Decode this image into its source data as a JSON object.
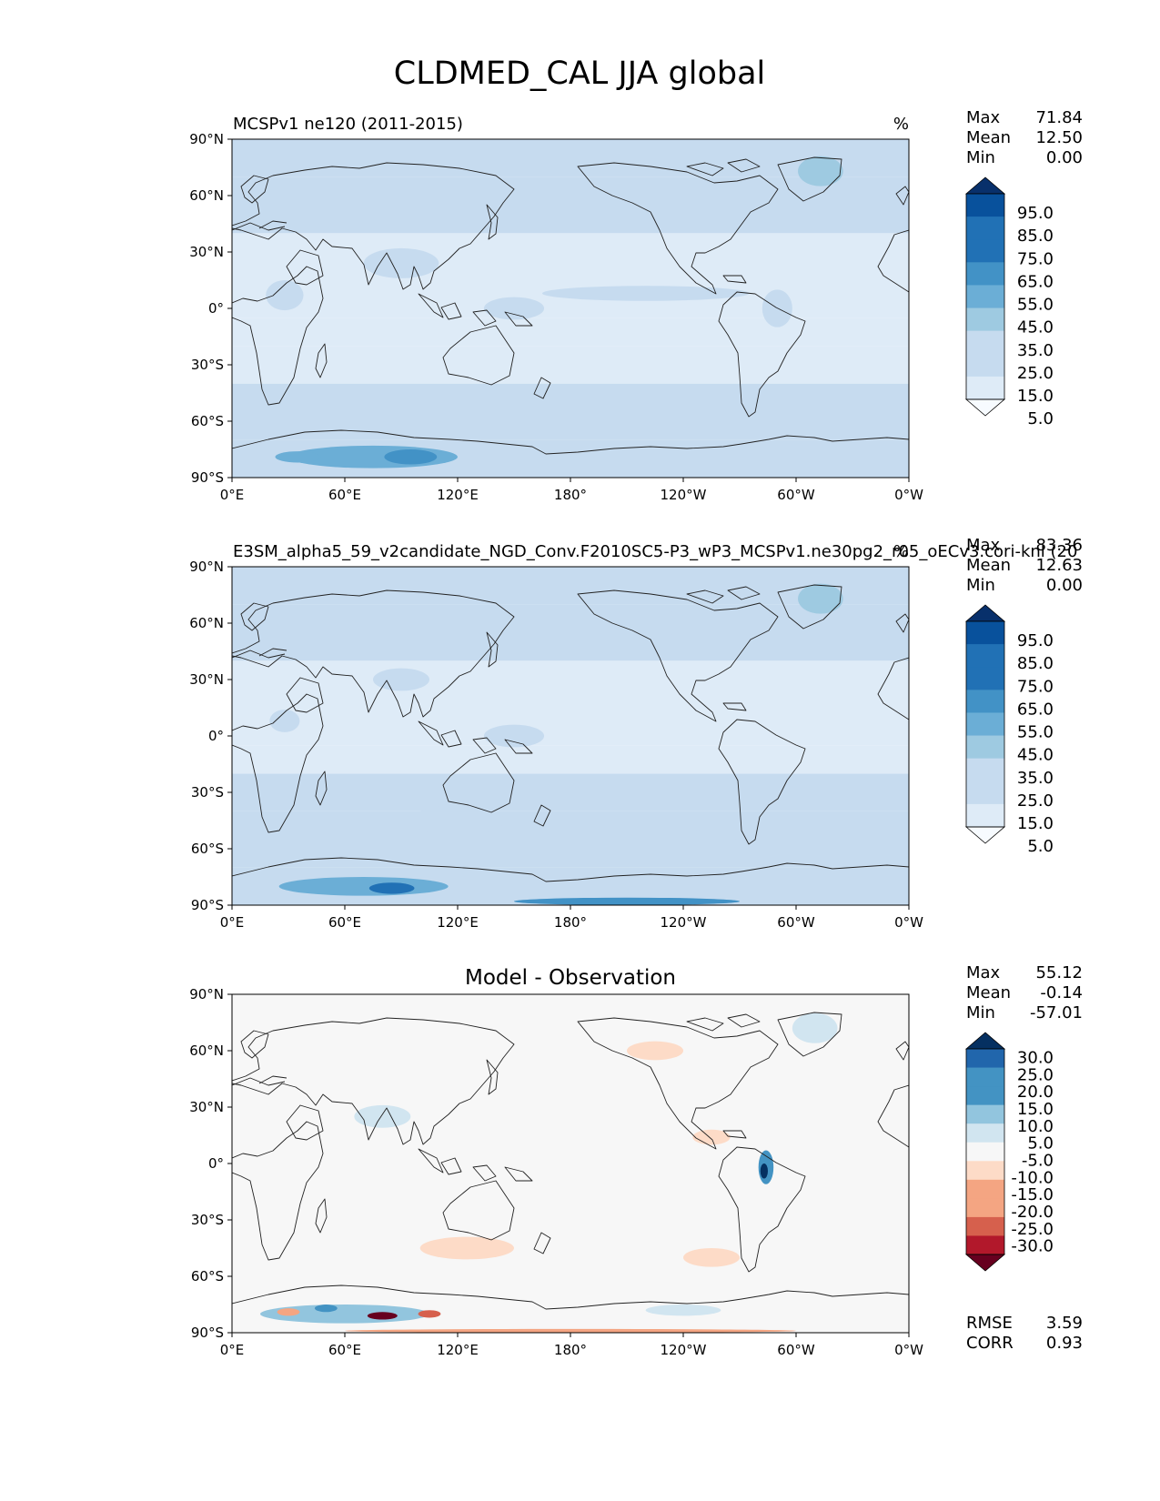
{
  "figure": {
    "title": "CLDMED_CAL JJA global"
  },
  "colors": {
    "coastline": "#222222",
    "frame": "#000000",
    "seq_cmap": [
      "#f7fbff",
      "#deebf7",
      "#c6dbef",
      "#9ecae1",
      "#6baed6",
      "#4292c6",
      "#2171b5",
      "#08519c",
      "#08306b"
    ],
    "div_cmap": [
      "#67001f",
      "#b2182b",
      "#d6604d",
      "#f4a582",
      "#fddbc7",
      "#f7f7f7",
      "#d1e5f0",
      "#92c5de",
      "#4393c3",
      "#2166ac",
      "#053061"
    ]
  },
  "chart_data": [
    {
      "type": "heatmap",
      "id": "panel1",
      "title_left": "MCSPv1 ne120 (2011-2015)",
      "title_center": "",
      "units": "%",
      "stats": [
        {
          "label": "Max",
          "value": "71.84"
        },
        {
          "label": "Mean",
          "value": "12.50"
        },
        {
          "label": "Min",
          "value": "0.00"
        }
      ],
      "colorbar": {
        "ticks": [
          "95.0",
          "85.0",
          "75.0",
          "65.0",
          "55.0",
          "45.0",
          "35.0",
          "25.0",
          "15.0",
          "5.0"
        ],
        "levels": [
          0,
          5,
          15,
          25,
          35,
          45,
          55,
          65,
          75,
          85,
          95,
          100
        ],
        "extend": "both"
      },
      "xlim": [
        0,
        360
      ],
      "ylim": [
        -90,
        90
      ],
      "xtick_labels": [
        "0°E",
        "60°E",
        "120°E",
        "180°",
        "120°W",
        "60°W",
        "0°W"
      ],
      "ytick_labels": [
        "90°N",
        "60°N",
        "30°N",
        "0°",
        "30°S",
        "60°S",
        "90°S"
      ],
      "features": [
        {
          "kind": "band",
          "lat": [
            -90,
            -70
          ],
          "value": 24
        },
        {
          "kind": "band",
          "lat": [
            -70,
            -40
          ],
          "value": 22
        },
        {
          "kind": "band",
          "lat": [
            -40,
            -20
          ],
          "value": 14
        },
        {
          "kind": "band",
          "lat": [
            -20,
            -5
          ],
          "value": 10
        },
        {
          "kind": "band",
          "lat": [
            -5,
            15
          ],
          "value": 14
        },
        {
          "kind": "band",
          "lat": [
            15,
            40
          ],
          "value": 9
        },
        {
          "kind": "band",
          "lat": [
            40,
            70
          ],
          "value": 16
        },
        {
          "kind": "band",
          "lat": [
            70,
            90
          ],
          "value": 18
        },
        {
          "kind": "blob",
          "lon": 75,
          "lat": -79,
          "rlon": 45,
          "rlat": 6,
          "value": 45
        },
        {
          "kind": "blob",
          "lon": 95,
          "lat": -79,
          "rlon": 14,
          "rlat": 4,
          "value": 62
        },
        {
          "kind": "blob",
          "lon": 35,
          "lat": -79,
          "rlon": 12,
          "rlat": 3,
          "value": 52
        },
        {
          "kind": "blob",
          "lon": 313,
          "lat": 73,
          "rlon": 12,
          "rlat": 8,
          "value": 42
        },
        {
          "kind": "blob",
          "lon": 90,
          "lat": 24,
          "rlon": 20,
          "rlat": 8,
          "value": 33
        },
        {
          "kind": "blob",
          "lon": 28,
          "lat": 7,
          "rlon": 10,
          "rlat": 8,
          "value": 31
        },
        {
          "kind": "blob",
          "lon": 150,
          "lat": 0,
          "rlon": 16,
          "rlat": 6,
          "value": 26
        },
        {
          "kind": "blob",
          "lon": 290,
          "lat": 0,
          "rlon": 8,
          "rlat": 10,
          "value": 28
        },
        {
          "kind": "blob",
          "lon": 220,
          "lat": 8,
          "rlon": 55,
          "rlat": 4,
          "value": 18
        }
      ]
    },
    {
      "type": "heatmap",
      "id": "panel2",
      "title_left": "E3SM_alpha5_59_v2candidate_NGD_Conv.F2010SC5-P3_wP3_MCSPv1.ne30pg2_r05_oECv3.cori-knl (20",
      "title_center": "",
      "units": "%",
      "stats": [
        {
          "label": "Max",
          "value": "83.36"
        },
        {
          "label": "Mean",
          "value": "12.63"
        },
        {
          "label": "Min",
          "value": "0.00"
        }
      ],
      "colorbar": {
        "ticks": [
          "95.0",
          "85.0",
          "75.0",
          "65.0",
          "55.0",
          "45.0",
          "35.0",
          "25.0",
          "15.0",
          "5.0"
        ],
        "levels": [
          0,
          5,
          15,
          25,
          35,
          45,
          55,
          65,
          75,
          85,
          95,
          100
        ],
        "extend": "both"
      },
      "xlim": [
        0,
        360
      ],
      "ylim": [
        -90,
        90
      ],
      "xtick_labels": [
        "0°E",
        "60°E",
        "120°E",
        "180°",
        "120°W",
        "60°W",
        "0°W"
      ],
      "ytick_labels": [
        "90°N",
        "60°N",
        "30°N",
        "0°",
        "30°S",
        "60°S",
        "90°S"
      ],
      "features": [
        {
          "kind": "band",
          "lat": [
            -90,
            -70
          ],
          "value": 24
        },
        {
          "kind": "band",
          "lat": [
            -70,
            -40
          ],
          "value": 21
        },
        {
          "kind": "band",
          "lat": [
            -40,
            -20
          ],
          "value": 16
        },
        {
          "kind": "band",
          "lat": [
            -20,
            -5
          ],
          "value": 10
        },
        {
          "kind": "band",
          "lat": [
            -5,
            15
          ],
          "value": 14
        },
        {
          "kind": "band",
          "lat": [
            15,
            40
          ],
          "value": 10
        },
        {
          "kind": "band",
          "lat": [
            40,
            70
          ],
          "value": 17
        },
        {
          "kind": "band",
          "lat": [
            70,
            90
          ],
          "value": 18
        },
        {
          "kind": "blob",
          "lon": 70,
          "lat": -80,
          "rlon": 45,
          "rlat": 5,
          "value": 45
        },
        {
          "kind": "blob",
          "lon": 85,
          "lat": -81,
          "rlon": 12,
          "rlat": 3,
          "value": 72
        },
        {
          "kind": "blob",
          "lon": 120,
          "lat": -45,
          "rlon": 25,
          "rlat": 8,
          "value": 30
        },
        {
          "kind": "blob",
          "lon": 250,
          "lat": -55,
          "rlon": 18,
          "rlat": 5,
          "value": 30
        },
        {
          "kind": "blob",
          "lon": 313,
          "lat": 73,
          "rlon": 12,
          "rlat": 8,
          "value": 42
        },
        {
          "kind": "blob",
          "lon": 90,
          "lat": 30,
          "rlon": 15,
          "rlat": 6,
          "value": 33
        },
        {
          "kind": "blob",
          "lon": 28,
          "lat": 8,
          "rlon": 8,
          "rlat": 6,
          "value": 30
        },
        {
          "kind": "blob",
          "lon": 225,
          "lat": 60,
          "rlon": 18,
          "rlat": 7,
          "value": 30
        },
        {
          "kind": "blob",
          "lon": 150,
          "lat": 0,
          "rlon": 16,
          "rlat": 6,
          "value": 22
        },
        {
          "kind": "blob",
          "lon": 210,
          "lat": -88,
          "rlon": 60,
          "rlat": 2,
          "value": 55
        }
      ]
    },
    {
      "type": "heatmap",
      "id": "panel3",
      "title_left": "",
      "title_center": "Model - Observation",
      "units": "",
      "stats": [
        {
          "label": "Max",
          "value": "55.12"
        },
        {
          "label": "Mean",
          "value": "-0.14"
        },
        {
          "label": "Min",
          "value": "-57.01"
        }
      ],
      "footer_stats": [
        {
          "label": "RMSE",
          "value": "3.59"
        },
        {
          "label": "CORR",
          "value": "0.93"
        }
      ],
      "colorbar": {
        "ticks": [
          "30.0",
          "25.0",
          "20.0",
          "15.0",
          "10.0",
          "5.0",
          "-5.0",
          "-10.0",
          "-15.0",
          "-20.0",
          "-25.0",
          "-30.0"
        ],
        "levels": [
          -35,
          -30,
          -25,
          -20,
          -15,
          -10,
          -5,
          5,
          10,
          15,
          20,
          25,
          30,
          35
        ],
        "extend": "both"
      },
      "xlim": [
        0,
        360
      ],
      "ylim": [
        -90,
        90
      ],
      "xtick_labels": [
        "0°E",
        "60°E",
        "120°E",
        "180°",
        "120°W",
        "60°W",
        "0°W"
      ],
      "ytick_labels": [
        "90°N",
        "60°N",
        "30°N",
        "0°",
        "30°S",
        "60°S",
        "90°S"
      ],
      "features": [
        {
          "kind": "band",
          "lat": [
            -90,
            90
          ],
          "value": 0
        },
        {
          "kind": "blob",
          "lon": 125,
          "lat": -45,
          "rlon": 25,
          "rlat": 6,
          "value": -8
        },
        {
          "kind": "blob",
          "lon": 255,
          "lat": -50,
          "rlon": 15,
          "rlat": 5,
          "value": -8
        },
        {
          "kind": "blob",
          "lon": 225,
          "lat": 60,
          "rlon": 15,
          "rlat": 5,
          "value": -8
        },
        {
          "kind": "blob",
          "lon": 255,
          "lat": 14,
          "rlon": 10,
          "rlat": 4,
          "value": -8
        },
        {
          "kind": "blob",
          "lon": 284,
          "lat": -2,
          "rlon": 4,
          "rlat": 9,
          "value": 18
        },
        {
          "kind": "blob",
          "lon": 283,
          "lat": -4,
          "rlon": 2,
          "rlat": 4,
          "value": 32
        },
        {
          "kind": "blob",
          "lon": 310,
          "lat": 72,
          "rlon": 12,
          "rlat": 8,
          "value": 8
        },
        {
          "kind": "blob",
          "lon": 80,
          "lat": 25,
          "rlon": 15,
          "rlat": 6,
          "value": 8
        },
        {
          "kind": "blob",
          "lon": 60,
          "lat": -80,
          "rlon": 45,
          "rlat": 5,
          "value": 12
        },
        {
          "kind": "blob",
          "lon": 80,
          "lat": -81,
          "rlon": 8,
          "rlat": 2,
          "value": -32
        },
        {
          "kind": "blob",
          "lon": 30,
          "lat": -79,
          "rlon": 6,
          "rlat": 2,
          "value": -16
        },
        {
          "kind": "blob",
          "lon": 50,
          "lat": -77,
          "rlon": 6,
          "rlat": 2,
          "value": 22
        },
        {
          "kind": "blob",
          "lon": 105,
          "lat": -80,
          "rlon": 6,
          "rlat": 2,
          "value": -22
        },
        {
          "kind": "blob",
          "lon": 240,
          "lat": -78,
          "rlon": 20,
          "rlat": 3,
          "value": 8
        },
        {
          "kind": "blob",
          "lon": 180,
          "lat": -89,
          "rlon": 120,
          "rlat": 1,
          "value": -12
        }
      ]
    }
  ]
}
